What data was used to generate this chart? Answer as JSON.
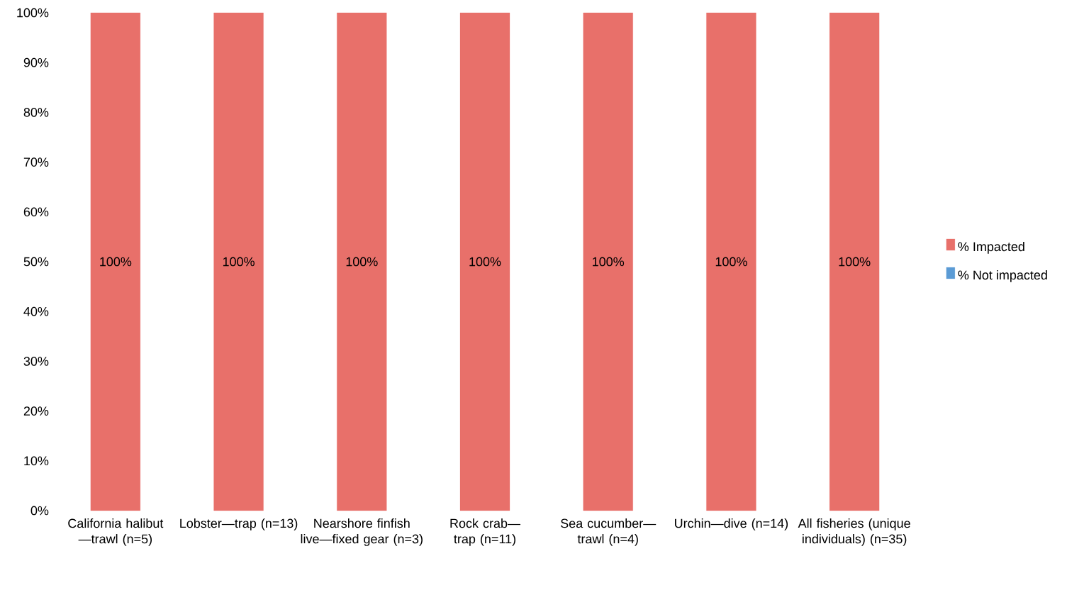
{
  "chart_data": {
    "type": "bar",
    "stacked": true,
    "legend": "right",
    "categories": [
      "California halibut —trawl (n=5)",
      "Lobster—trap (n=13)",
      "Nearshore finfish live—fixed gear (n=3)",
      "Rock crab—trap (n=11)",
      "Sea cucumber— trawl (n=4)",
      "Urchin—dive (n=14)",
      "All fisheries (unique individuals) (n=35)"
    ],
    "series": [
      {
        "name": "% Impacted",
        "color": "#e8706a",
        "values": [
          100,
          100,
          100,
          100,
          100,
          100,
          100
        ],
        "value_labels": [
          "100%",
          "100%",
          "100%",
          "100%",
          "100%",
          "100%",
          "100%"
        ]
      },
      {
        "name": "% Not impacted",
        "color": "#5b9bd5",
        "values": [
          0,
          0,
          0,
          0,
          0,
          0,
          0
        ]
      }
    ],
    "ylim": [
      0,
      100
    ],
    "yticks": [
      {
        "value": 0,
        "label": "0%"
      },
      {
        "value": 10,
        "label": "10%"
      },
      {
        "value": 20,
        "label": "20%"
      },
      {
        "value": 30,
        "label": "30%"
      },
      {
        "value": 40,
        "label": "40%"
      },
      {
        "value": 50,
        "label": "50%"
      },
      {
        "value": 60,
        "label": "60%"
      },
      {
        "value": 70,
        "label": "70%"
      },
      {
        "value": 80,
        "label": "80%"
      },
      {
        "value": 90,
        "label": "90%"
      },
      {
        "value": 100,
        "label": "100%"
      }
    ]
  }
}
